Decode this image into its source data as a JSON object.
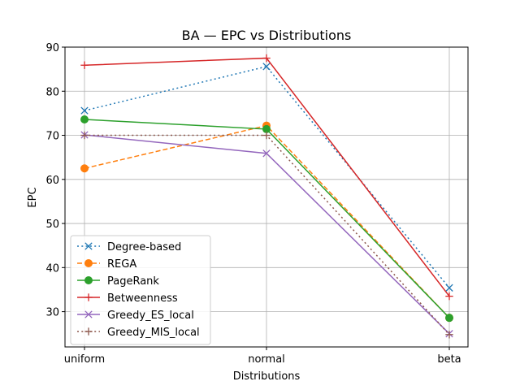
{
  "chart_data": {
    "type": "line",
    "title": "BA — EPC vs Distributions",
    "xlabel": "Distributions",
    "ylabel": "EPC",
    "categories": [
      "uniform",
      "normal",
      "beta"
    ],
    "ylim": [
      22,
      90
    ],
    "yticks": [
      30,
      40,
      50,
      60,
      70,
      80,
      90
    ],
    "grid": true,
    "legend_position": "lower-left",
    "series": [
      {
        "name": "Degree-based",
        "values": [
          75.6,
          85.6,
          35.4
        ],
        "color": "#1f77b4",
        "linestyle": "dotted",
        "marker": "x"
      },
      {
        "name": "REGA",
        "values": [
          62.5,
          72.2,
          28.6
        ],
        "color": "#ff7f0e",
        "linestyle": "dashed",
        "marker": "circle"
      },
      {
        "name": "PageRank",
        "values": [
          73.6,
          71.4,
          28.6
        ],
        "color": "#2ca02c",
        "linestyle": "solid",
        "marker": "circle"
      },
      {
        "name": "Betweenness",
        "values": [
          85.9,
          87.5,
          33.5
        ],
        "color": "#d62728",
        "linestyle": "solid",
        "marker": "plus"
      },
      {
        "name": "Greedy_ES_local",
        "values": [
          70.1,
          65.9,
          25.0
        ],
        "color": "#9467bd",
        "linestyle": "solid",
        "marker": "x"
      },
      {
        "name": "Greedy_MIS_local",
        "values": [
          70.0,
          70.0,
          24.8
        ],
        "color": "#8c564b",
        "linestyle": "dotted",
        "marker": "plus"
      }
    ]
  }
}
